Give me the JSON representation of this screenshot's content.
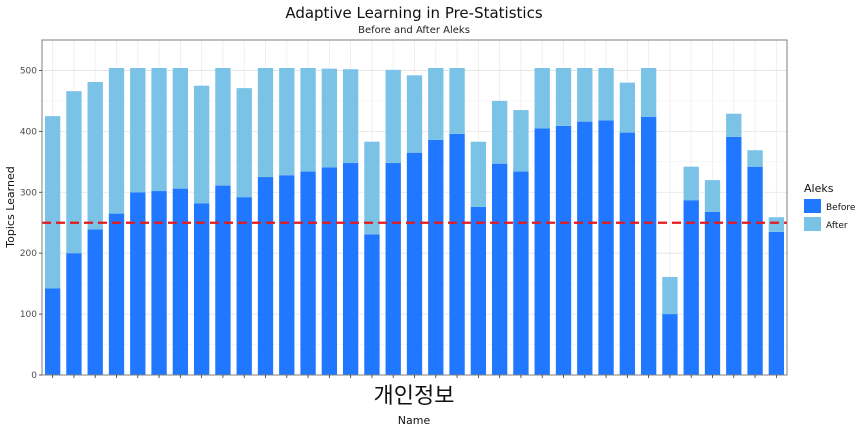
{
  "chart_data": {
    "type": "bar",
    "stacked": true,
    "title": "Adaptive Learning in Pre-Statistics",
    "subtitle": "Before and After Aleks",
    "xlabel": "Name",
    "ylabel": "Topics Learned",
    "overlay_text": "개인정보",
    "ylim": [
      0,
      550
    ],
    "yticks": [
      0,
      100,
      200,
      300,
      400,
      500
    ],
    "grid": true,
    "reference_line": {
      "y": 250,
      "color": "#e41a1c",
      "style": "dashed"
    },
    "legend": {
      "title": "Aleks",
      "position": "right",
      "entries": [
        {
          "label": "Before",
          "color": "#1f78ff"
        },
        {
          "label": "After",
          "color": "#7ac3e6"
        }
      ]
    },
    "series": [
      {
        "name": "Before",
        "color": "#1f78ff",
        "values": [
          142,
          200,
          239,
          265,
          300,
          302,
          306,
          282,
          311,
          292,
          325,
          328,
          334,
          341,
          348,
          231,
          348,
          365,
          386,
          396,
          276,
          347,
          334,
          405,
          409,
          416,
          418,
          398,
          424,
          100,
          287,
          268,
          391,
          342,
          235
        ]
      },
      {
        "name": "After",
        "color": "#7ac3e6",
        "values": [
          283,
          266,
          242,
          239,
          204,
          202,
          198,
          193,
          193,
          179,
          179,
          176,
          170,
          162,
          154,
          152,
          153,
          127,
          118,
          108,
          107,
          103,
          101,
          99,
          95,
          88,
          86,
          82,
          80,
          61,
          55,
          52,
          38,
          27,
          24
        ]
      }
    ]
  }
}
